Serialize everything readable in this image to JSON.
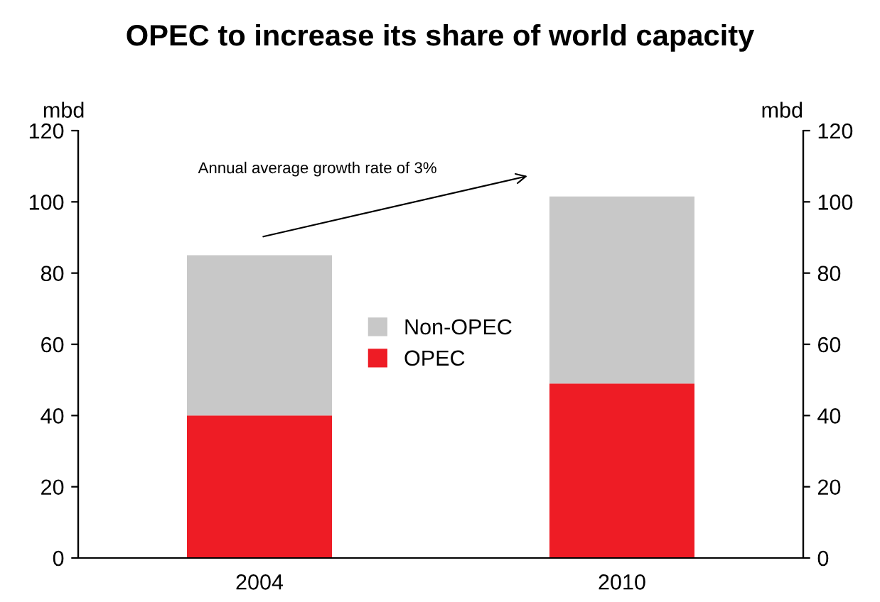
{
  "chart_data": {
    "type": "bar",
    "title": "OPEC to increase its share of world capacity",
    "ylabel": "mbd",
    "y2label": "mbd",
    "categories": [
      "2004",
      "2010"
    ],
    "stacked": true,
    "series": [
      {
        "name": "OPEC",
        "color": "#ee1c25",
        "values": [
          40,
          49
        ]
      },
      {
        "name": "Non-OPEC",
        "color": "#c8c8c8",
        "values": [
          45,
          52.5
        ]
      }
    ],
    "ylim": [
      0,
      120
    ],
    "yticks": [
      0,
      20,
      40,
      60,
      80,
      100,
      120
    ],
    "y2lim": [
      0,
      120
    ],
    "y2ticks": [
      0,
      20,
      40,
      60,
      80,
      100,
      120
    ],
    "annotations": [
      "Annual average growth rate of 3%"
    ],
    "legend": "center",
    "grid": false
  }
}
